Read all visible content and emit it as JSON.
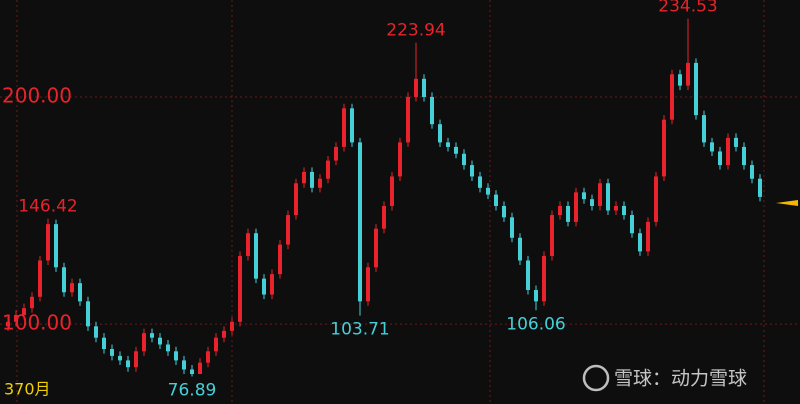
{
  "chart_data": {
    "type": "candlestick",
    "ylim": [
      64.8,
      242.7
    ],
    "yticks": [
      {
        "value": 100,
        "label": "100.00"
      },
      {
        "value": 200,
        "label": "200.00"
      }
    ],
    "grid": true,
    "xlabel": "370月",
    "up_color": "#e8232b",
    "down_color": "#45d0d8",
    "open": [
      99,
      101,
      104,
      107,
      112,
      128,
      144,
      125,
      114,
      118,
      110,
      99,
      94,
      89,
      86,
      84,
      81,
      88,
      96,
      94,
      91,
      88,
      84,
      80,
      78,
      83,
      88,
      94,
      97,
      101,
      130,
      140,
      120,
      113,
      122,
      135,
      148,
      162,
      167,
      160,
      164,
      172,
      178,
      195,
      180,
      110,
      125,
      142,
      152,
      165,
      180,
      200,
      208,
      200,
      188,
      180,
      178,
      175,
      170,
      165,
      160,
      157,
      152,
      147,
      138,
      128,
      115,
      110,
      130,
      148,
      152,
      145,
      158,
      155,
      152,
      162,
      150,
      152,
      148,
      140,
      132,
      145,
      165,
      190,
      210,
      205,
      215,
      192,
      180,
      176,
      170,
      182,
      178,
      170,
      164
    ],
    "high": [
      103,
      106,
      109,
      114,
      130,
      146.42,
      146,
      127,
      120,
      120,
      112,
      101,
      96,
      91,
      88,
      86,
      90,
      98,
      98,
      96,
      93,
      90,
      86,
      82,
      85,
      90,
      96,
      99,
      103,
      132,
      142,
      142,
      122,
      124,
      137,
      150,
      164,
      169,
      169,
      166,
      174,
      180,
      197,
      197,
      182,
      127,
      144,
      154,
      167,
      182,
      202,
      223.94,
      210,
      202,
      190,
      182,
      180,
      177,
      172,
      167,
      162,
      159,
      154,
      149,
      140,
      130,
      117,
      132,
      150,
      154,
      154,
      160,
      160,
      157,
      164,
      164,
      154,
      154,
      150,
      142,
      147,
      167,
      192,
      212,
      212,
      234.53,
      217,
      194,
      182,
      178,
      184,
      184,
      180,
      172,
      166
    ],
    "low": [
      97,
      99,
      102,
      105,
      110,
      126,
      123,
      112,
      112,
      108,
      97,
      92,
      87,
      84,
      82,
      79,
      79,
      86,
      92,
      89,
      86,
      82,
      78,
      76.89,
      78,
      81,
      86,
      92,
      95,
      99,
      128,
      118,
      111,
      111,
      120,
      133,
      146,
      160,
      158,
      158,
      162,
      170,
      176,
      178,
      103.71,
      108,
      123,
      140,
      150,
      163,
      178,
      198,
      198,
      186,
      178,
      176,
      173,
      168,
      163,
      158,
      155,
      150,
      145,
      136,
      126,
      113,
      106.06,
      108,
      128,
      146,
      143,
      143,
      153,
      150,
      150,
      148,
      148,
      146,
      138,
      130,
      130,
      143,
      163,
      188,
      203,
      203,
      190,
      178,
      174,
      168,
      168,
      176,
      168,
      162,
      154
    ],
    "close": [
      101,
      104,
      107,
      112,
      128,
      144,
      125,
      114,
      118,
      110,
      99,
      94,
      89,
      86,
      84,
      81,
      88,
      96,
      94,
      91,
      88,
      84,
      80,
      78,
      83,
      88,
      94,
      97,
      101,
      130,
      140,
      120,
      113,
      122,
      135,
      148,
      162,
      167,
      160,
      164,
      172,
      178,
      195,
      180,
      110,
      125,
      142,
      152,
      165,
      180,
      200,
      208,
      200,
      188,
      180,
      178,
      175,
      170,
      165,
      160,
      157,
      152,
      147,
      138,
      128,
      115,
      110,
      130,
      148,
      152,
      145,
      158,
      155,
      152,
      162,
      150,
      152,
      148,
      140,
      132,
      145,
      165,
      190,
      210,
      205,
      215,
      192,
      180,
      176,
      170,
      182,
      178,
      170,
      164,
      156
    ],
    "annotations": [
      {
        "label": "146.42",
        "value": 146.42
      },
      {
        "label": "76.89",
        "value": 76.89
      },
      {
        "label": "103.71",
        "value": 103.71
      },
      {
        "label": "223.94",
        "value": 223.94
      },
      {
        "label": "106.06",
        "value": 106.06
      },
      {
        "label": "234.53",
        "value": 234.53
      }
    ]
  },
  "watermark": "雪球：动力雪球"
}
